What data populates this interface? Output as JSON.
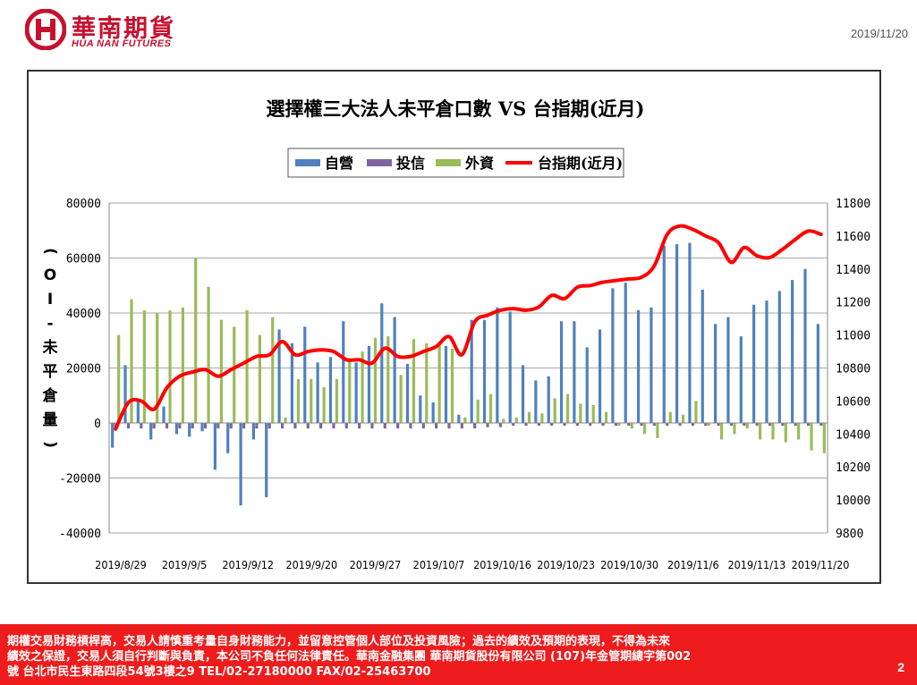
{
  "header": {
    "logo_zh": "華南期貨",
    "logo_en": "HUA NAN FUTURES",
    "date": "2019/11/20"
  },
  "chart_data": {
    "type": "bar",
    "title": "選擇權三大法人未平倉口數 VS 台指期(近月)",
    "ylabel": "(OI-未平倉量)",
    "ylim": [
      -40000,
      80000
    ],
    "y2lim": [
      9800,
      11800
    ],
    "yticks": [
      "80000",
      "60000",
      "40000",
      "20000",
      "0",
      "-20000",
      "-40000"
    ],
    "y2ticks": [
      "11800",
      "11600",
      "11400",
      "11200",
      "11000",
      "10800",
      "10600",
      "10400",
      "10200",
      "10000",
      "9800"
    ],
    "xtick_labels": [
      "2019/8/29",
      "2019/9/5",
      "2019/9/12",
      "2019/9/20",
      "2019/9/27",
      "2019/10/7",
      "2019/10/16",
      "2019/10/23",
      "2019/10/30",
      "2019/11/6",
      "2019/11/13",
      "2019/11/20"
    ],
    "grid": true,
    "legend_position": "top",
    "series": [
      {
        "name": "自營",
        "kind": "bar",
        "axis": "left",
        "color": "#4f81bd",
        "values": [
          -9000,
          21000,
          8000,
          -6000,
          6000,
          -4000,
          -5000,
          -3000,
          -17000,
          -11000,
          -30000,
          -6000,
          -27000,
          34000,
          29000,
          35000,
          22000,
          24000,
          37000,
          22000,
          28000,
          43500,
          38500,
          21500,
          10000,
          7500,
          28000,
          3000,
          37500,
          37500,
          42000,
          40500,
          21000,
          15500,
          17000,
          37000,
          37000,
          27500,
          34000,
          49000,
          51000,
          41000,
          42000,
          64500,
          65000,
          65500,
          48500,
          36000,
          38500,
          31500,
          43000,
          44500,
          48000,
          52000,
          56000,
          36000
        ]
      },
      {
        "name": "投信",
        "kind": "bar",
        "axis": "left",
        "color": "#8064a2",
        "values": [
          -2000,
          -2000,
          -2000,
          -2000,
          -2000,
          -2000,
          -2000,
          -2000,
          -2000,
          -2000,
          -2000,
          -2000,
          -2000,
          -2000,
          -2000,
          -2000,
          -2000,
          -2000,
          -2000,
          -2000,
          -2000,
          -2000,
          -2000,
          -2000,
          -2000,
          -2000,
          -2000,
          -2000,
          -2000,
          -1500,
          -1500,
          -1000,
          -1000,
          -1000,
          -1000,
          -1000,
          -1000,
          -1000,
          -1000,
          -1000,
          -1000,
          -1000,
          -1000,
          -1000,
          -1000,
          -1000,
          -1000,
          -1000,
          -1000,
          -1000,
          -1000,
          -1000,
          -1000,
          -1000,
          -1000,
          -1000
        ]
      },
      {
        "name": "外資",
        "kind": "bar",
        "axis": "left",
        "color": "#9bbb59",
        "values": [
          32000,
          45000,
          41000,
          40000,
          41000,
          42000,
          60000,
          49500,
          37500,
          35000,
          41000,
          32000,
          38500,
          2000,
          16000,
          16000,
          13000,
          16000,
          23500,
          26000,
          31000,
          31500,
          17500,
          30500,
          29000,
          28500,
          27000,
          2000,
          8500,
          10500,
          1500,
          2000,
          4000,
          3500,
          9000,
          10500,
          7000,
          6500,
          4000,
          -1000,
          -2000,
          -4000,
          -5500,
          4000,
          3000,
          8000,
          -1000,
          -6000,
          -4000,
          -2000,
          -6000,
          -6000,
          -7000,
          -6000,
          -10000,
          -11000
        ]
      },
      {
        "name": "台指期(近月)",
        "kind": "line",
        "axis": "right",
        "color": "#ff0000",
        "values": [
          10430,
          10590,
          10600,
          10550,
          10680,
          10750,
          10775,
          10790,
          10750,
          10790,
          10830,
          10870,
          10880,
          10960,
          10880,
          10900,
          10910,
          10900,
          10850,
          10850,
          10830,
          10920,
          10870,
          10870,
          10900,
          10930,
          10990,
          10880,
          11080,
          11120,
          11150,
          11160,
          11150,
          11170,
          11240,
          11220,
          11290,
          11300,
          11320,
          11330,
          11340,
          11350,
          11420,
          11610,
          11660,
          11640,
          11600,
          11560,
          11440,
          11530,
          11480,
          11470,
          11520,
          11580,
          11630,
          11610
        ]
      }
    ]
  },
  "footer": {
    "line1": "期權交易財務槓桿高，交易人請慎重考量自身財務能力，並留意控管個人部位及投資風險；過去的績效及預期的表現，不得為未來",
    "line2": "績效之保證，交易人須自行判斷與負責，本公司不負任何法律責任。華南金融集團 華南期貨股份有限公司 (107)年金管期總字第002",
    "line3": "號 台北市民生東路四段54號3樓之9 TEL/02-27180000 FAX/02-25463700",
    "page": "2"
  }
}
